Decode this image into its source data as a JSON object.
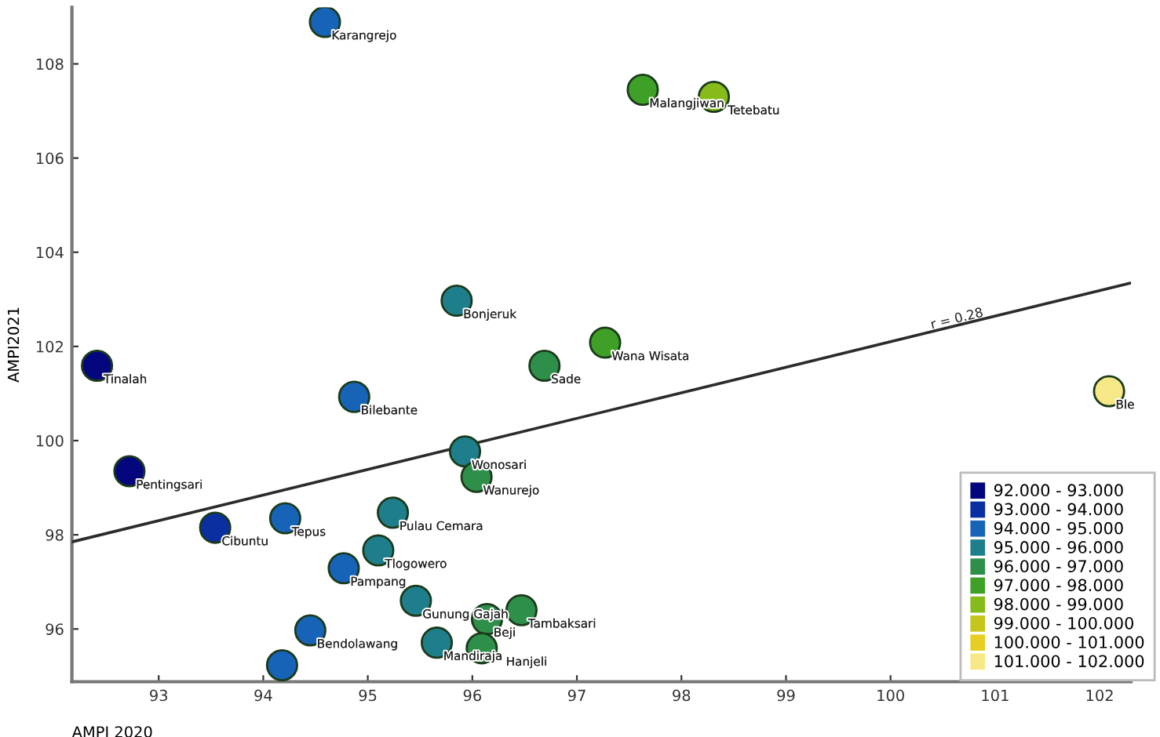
{
  "chart_data": {
    "type": "scatter",
    "xlabel": "AMPI 2020",
    "ylabel": "AMPI2021",
    "xlim": [
      92.17,
      102.3
    ],
    "ylim": [
      94.88,
      109.2
    ],
    "xticks": [
      93,
      94,
      95,
      96,
      97,
      98,
      99,
      100,
      101,
      102
    ],
    "yticks": [
      96,
      98,
      100,
      102,
      104,
      106,
      108
    ],
    "grid": false,
    "marker": "circle",
    "legend": "bottom right",
    "series": [
      {
        "name": "92.000 - 93.000",
        "color": "#04067e",
        "x": [
          92.41,
          92.72
        ],
        "values": [
          101.59,
          99.35
        ]
      },
      {
        "name": "93.000 - 94.000",
        "color": "#0a2fa0",
        "x": [
          93.54
        ],
        "values": [
          98.15
        ]
      },
      {
        "name": "94.000 - 95.000",
        "color": "#1663b8",
        "x": [
          94.59,
          94.87,
          94.21,
          94.77,
          94.45,
          94.18
        ],
        "values": [
          108.89,
          100.93,
          98.35,
          97.29,
          95.97,
          95.23
        ]
      },
      {
        "name": "95.000 - 96.000",
        "color": "#1f7e8c",
        "x": [
          95.85,
          95.93,
          95.24,
          95.1,
          95.46,
          95.66
        ],
        "values": [
          102.97,
          99.77,
          98.47,
          97.67,
          96.6,
          95.71
        ]
      },
      {
        "name": "96.000 - 97.000",
        "color": "#2e8f4a",
        "x": [
          96.69,
          96.04,
          96.14,
          96.47,
          96.09
        ],
        "values": [
          101.59,
          99.23,
          96.21,
          96.4,
          95.59
        ]
      },
      {
        "name": "97.000 - 98.000",
        "color": "#3fa028",
        "x": [
          97.63,
          97.27
        ],
        "values": [
          107.45,
          102.08
        ]
      },
      {
        "name": "98.000 - 99.000",
        "color": "#86bb1a",
        "x": [
          98.31
        ],
        "values": [
          107.3
        ]
      },
      {
        "name": "99.000 - 100.000",
        "color": "#c4c61a"
      },
      {
        "name": "100.000 - 101.000",
        "color": "#e6cf22"
      },
      {
        "name": "101.000 - 102.000",
        "color": "#f6e886",
        "x": [
          102.09
        ],
        "values": [
          101.05
        ]
      },
      {
        "type": "line",
        "marker": "none",
        "color": "#2b2b2b",
        "x": [
          92.17,
          102.3
        ],
        "values": [
          97.85,
          103.35
        ]
      }
    ],
    "annotations": [
      {
        "text": "Karangrejo",
        "x": 94.59,
        "y": 108.89
      },
      {
        "text": "Bonjeruk",
        "x": 95.85,
        "y": 102.97
      },
      {
        "text": "Tinalah",
        "x": 92.41,
        "y": 101.59
      },
      {
        "text": "Sade",
        "x": 96.69,
        "y": 101.59
      },
      {
        "text": "Bilebante",
        "x": 94.87,
        "y": 100.93
      },
      {
        "text": "Pentingsari",
        "x": 92.72,
        "y": 99.35
      },
      {
        "text": "Wonosari",
        "x": 95.93,
        "y": 99.77
      },
      {
        "text": "Wanurejo",
        "x": 96.04,
        "y": 99.23
      },
      {
        "text": "Cibuntu",
        "x": 93.54,
        "y": 98.15
      },
      {
        "text": "Tepus",
        "x": 94.21,
        "y": 98.35
      },
      {
        "text": "Pulau Cemara",
        "x": 95.24,
        "y": 98.47
      },
      {
        "text": "Tlogowero",
        "x": 95.1,
        "y": 97.67
      },
      {
        "text": "Pampang",
        "x": 94.77,
        "y": 97.29
      },
      {
        "text": "Gunung Gajah",
        "x": 95.46,
        "y": 96.6
      },
      {
        "text": "Beji",
        "x": 96.14,
        "y": 96.21
      },
      {
        "text": "Tambaksari",
        "x": 96.47,
        "y": 96.4
      },
      {
        "text": "Mandiraja",
        "x": 95.66,
        "y": 95.71
      },
      {
        "text": "Hanjeli",
        "x": 96.09,
        "y": 95.59
      },
      {
        "text": "Bendolawang",
        "x": 94.45,
        "y": 95.97
      },
      {
        "text": "Malangjiwan",
        "x": 97.63,
        "y": 107.45
      },
      {
        "text": "Tetebatu",
        "x": 98.31,
        "y": 107.3
      },
      {
        "text": "Wana Wisata",
        "x": 97.27,
        "y": 102.08
      },
      {
        "text": "Ble",
        "x": 102.09,
        "y": 101.05
      },
      {
        "text": "r = 0.28",
        "x": 100.65,
        "y": 102.45
      }
    ]
  }
}
